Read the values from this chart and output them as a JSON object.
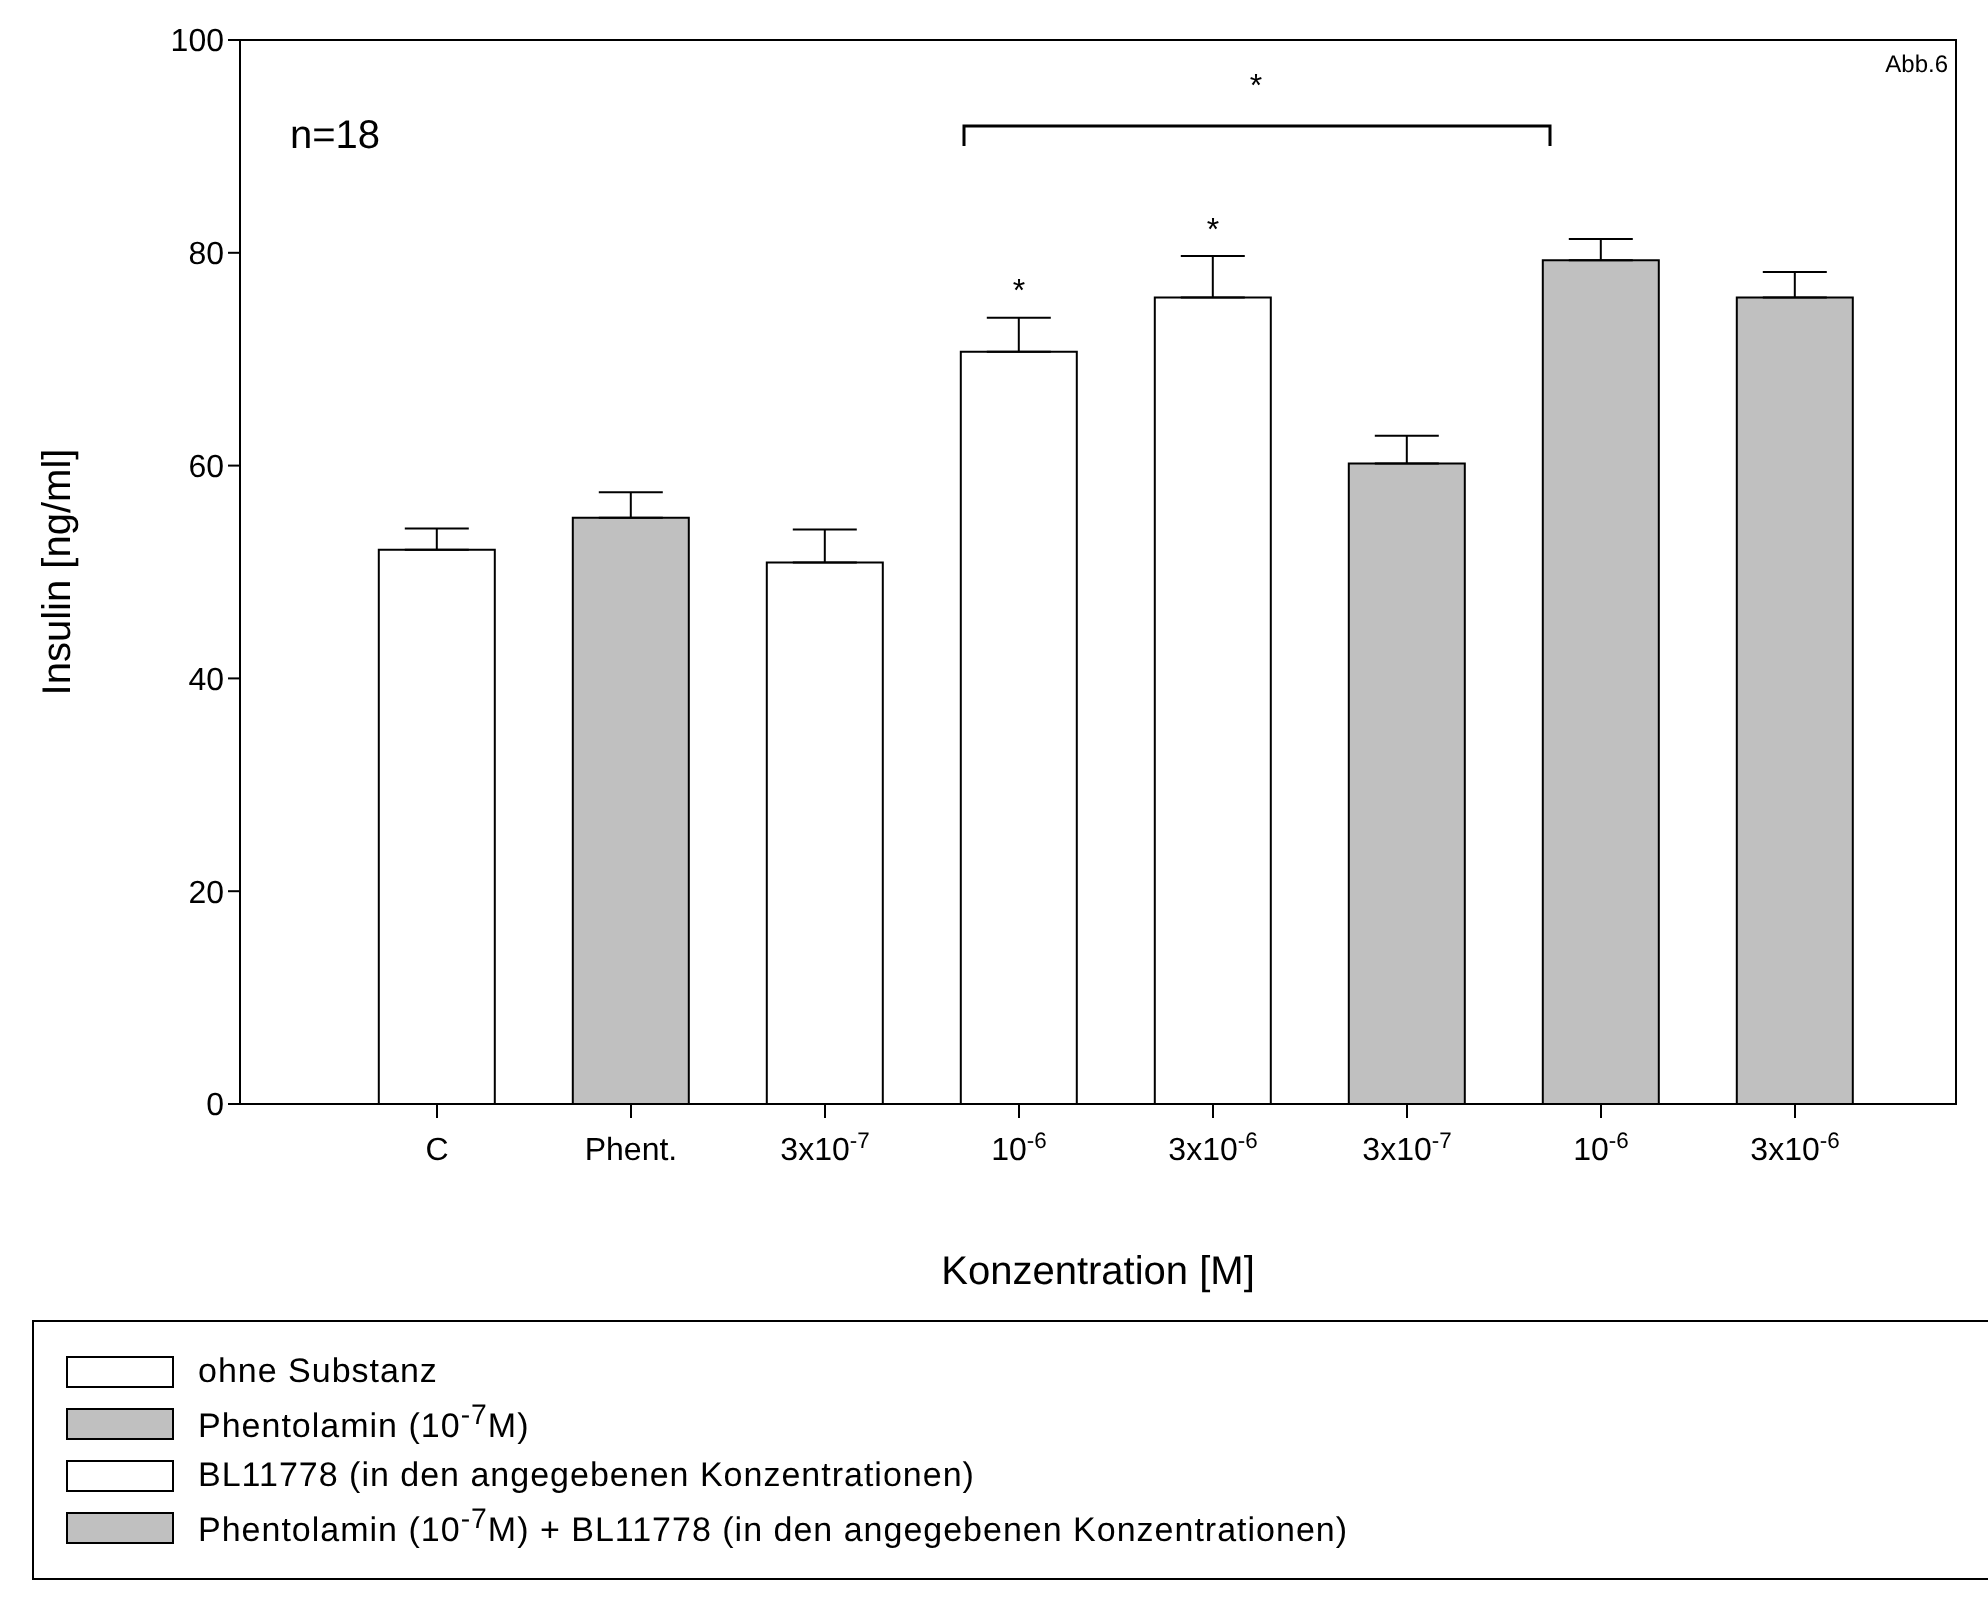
{
  "chart_data": {
    "type": "bar",
    "xlabel": "Konzentration [M]",
    "ylabel": "Insulin [ng/ml]",
    "categories": [
      "C",
      "Phent.",
      "3x10$^{-7}$",
      "10$^{-6}$",
      "3x10$^{-6}$",
      "3x10$^{-7}$",
      "10$^{-6}$",
      "3x10$^{-6}$"
    ],
    "series": [
      {
        "name": "ohne Substanz",
        "color": "#ffffff",
        "values": [
          52.1,
          null,
          null,
          null,
          null,
          null,
          null,
          null
        ],
        "errors": [
          [
            52.1,
            54.1
          ],
          null,
          null,
          null,
          null,
          null,
          null,
          null
        ]
      },
      {
        "name": "Phentolamin (10$^{-7}$M)",
        "color": "#c0c0c0",
        "values": [
          null,
          55.1,
          null,
          null,
          null,
          null,
          null,
          null
        ],
        "errors": [
          null,
          [
            55.1,
            57.5
          ],
          null,
          null,
          null,
          null,
          null,
          null
        ]
      },
      {
        "name": "BL11778 (in den angegebenen Konzentrationen)",
        "color": "#ffffff",
        "values": [
          null,
          null,
          50.9,
          70.7,
          75.8,
          null,
          null,
          null
        ],
        "errors": [
          null,
          null,
          [
            50.9,
            54.0
          ],
          [
            70.7,
            73.9
          ],
          [
            75.8,
            79.7
          ],
          null,
          null,
          null
        ]
      },
      {
        "name": "Phentolamin (10$^{-7}$M) + BL11778 (in den angegebenen Konzentrationen)",
        "color": "#c0c0c0",
        "values": [
          null,
          null,
          null,
          null,
          null,
          60.2,
          79.3,
          75.8
        ],
        "errors": [
          null,
          null,
          null,
          null,
          null,
          [
            60.2,
            62.8
          ],
          [
            79.3,
            81.3
          ],
          [
            75.8,
            78.2
          ]
        ]
      }
    ],
    "stacked": true,
    "ylim": [
      0,
      100
    ],
    "yticks": [
      0,
      20,
      40,
      60,
      80,
      100
    ],
    "legend": "bottom",
    "annotations": [
      "n=18",
      "Abb.6",
      "*",
      {
        "text": "*",
        "x": "10$^{-6}$",
        "y": 74
      },
      {
        "text": "*",
        "x": "3x10$^{-6}$",
        "y": 79.7
      }
    ]
  }
}
